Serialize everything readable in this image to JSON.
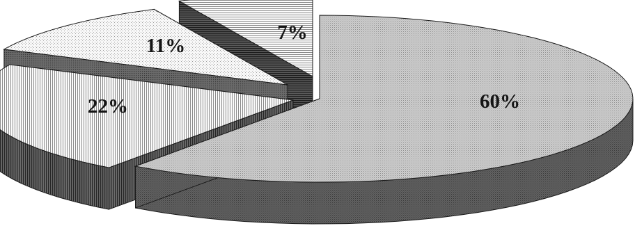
{
  "chart_data": {
    "type": "pie",
    "style": "3d-exploded",
    "values": [
      60,
      7,
      11,
      22
    ],
    "labels": [
      "60%",
      "7%",
      "11%",
      "22%"
    ],
    "colors": {
      "60%": {
        "top": "#cacaca",
        "side": "#5d5d5d",
        "pattern": "fine-dots"
      },
      "7%": {
        "top": "#f7f7f7",
        "side": "#404040",
        "pattern": "horizontal-lines"
      },
      "11%": {
        "top": "#f6f6f6",
        "side": "#5c5c5c",
        "pattern": "sparse-dots"
      },
      "22%": {
        "top": "#f6f6f6",
        "side": "#585858",
        "pattern": "vertical-lines"
      }
    },
    "legend": "none",
    "title": ""
  }
}
